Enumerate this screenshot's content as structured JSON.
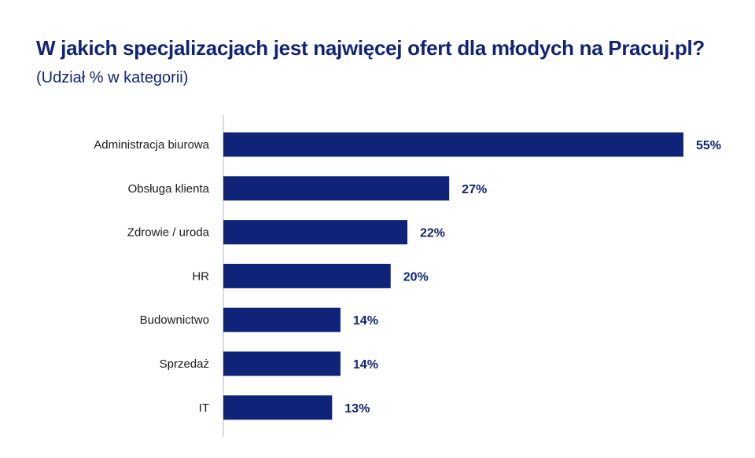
{
  "chart_data": {
    "type": "bar",
    "orientation": "horizontal",
    "title": "W jakich specjalizacjach jest najwięcej ofert dla młodych na Pracuj.pl?",
    "subtitle": "(Udział % w kategorii)",
    "categories": [
      "Administracja biurowa",
      "Obsługa klienta",
      "Zdrowie / uroda",
      "HR",
      "Budownictwo",
      "Sprzedaż",
      "IT"
    ],
    "values": [
      55,
      27,
      22,
      20,
      14,
      14,
      13
    ],
    "value_labels": [
      "55%",
      "27%",
      "22%",
      "20%",
      "14%",
      "14%",
      "13%"
    ],
    "unit": "%",
    "xlim": [
      0,
      55
    ],
    "grid": false,
    "legend": "none",
    "colors": {
      "bar": "#0f2479",
      "title": "#0f2479",
      "value_label": "#0f2479",
      "axis": "#d0d0d0",
      "category_label": "#1a1a1a"
    }
  }
}
